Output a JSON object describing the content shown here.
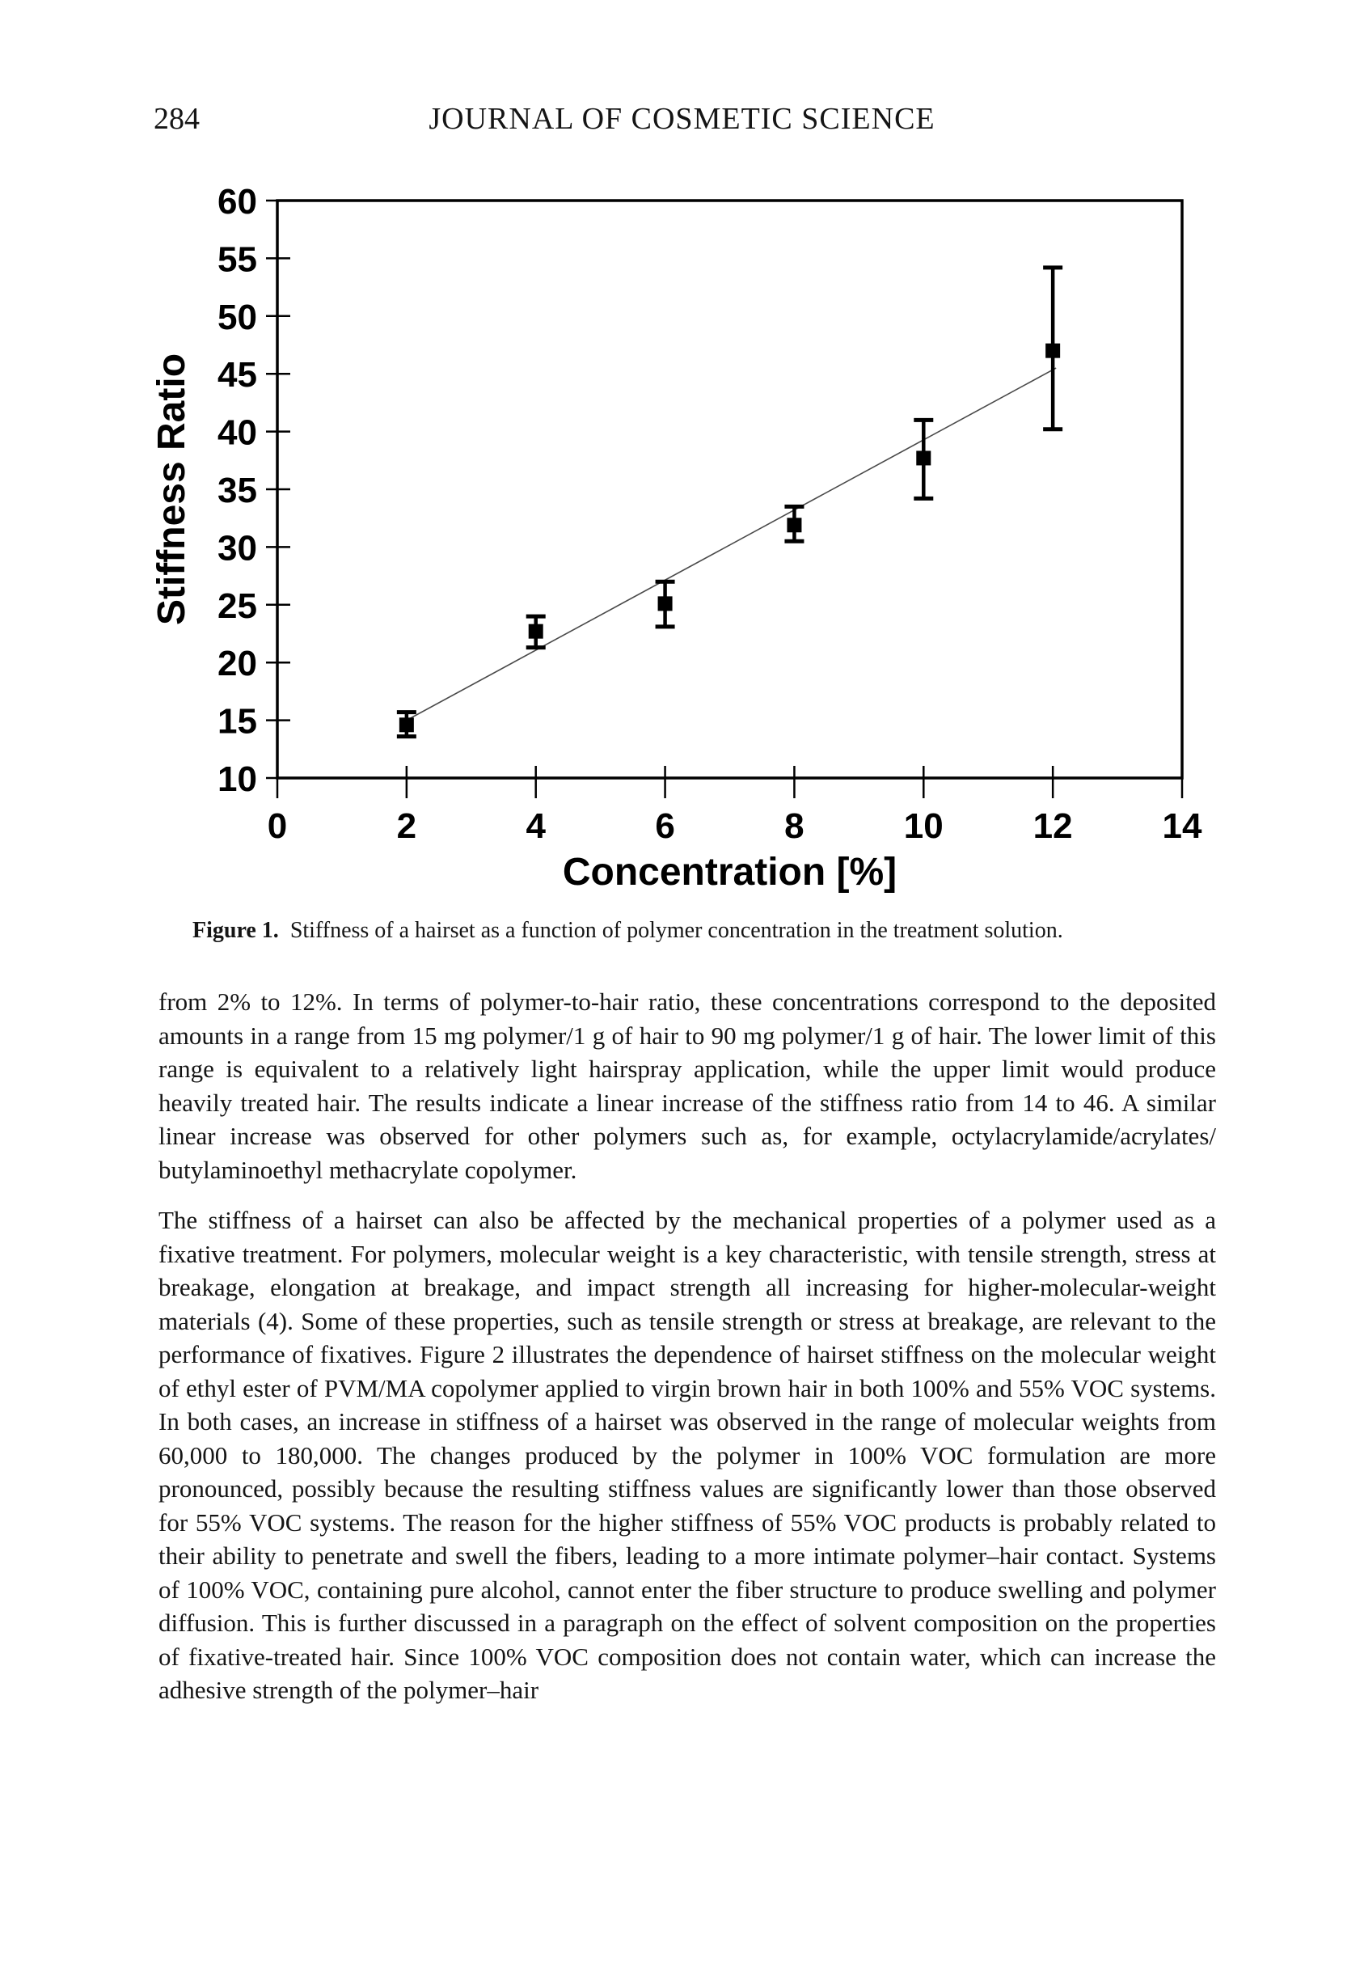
{
  "page": {
    "page_number": "284",
    "journal_title": "JOURNAL OF COSMETIC SCIENCE"
  },
  "figure": {
    "caption_label": "Figure 1.",
    "caption_text": "Stiffness of a hairset as a function of polymer concentration in the treatment solution."
  },
  "chart_data": {
    "type": "scatter",
    "title": "",
    "xlabel": "Concentration [%]",
    "ylabel": "Stiffness Ratio",
    "xlim": [
      0,
      14
    ],
    "ylim": [
      10,
      60
    ],
    "x_ticks": [
      0,
      2,
      4,
      6,
      8,
      10,
      12,
      14
    ],
    "y_ticks": [
      10,
      15,
      20,
      25,
      30,
      35,
      40,
      45,
      50,
      55,
      60
    ],
    "grid": false,
    "legend": false,
    "marker": "filled-square",
    "x": [
      2,
      4,
      6,
      8,
      10,
      12
    ],
    "y": [
      14.6,
      22.7,
      25.1,
      31.9,
      37.7,
      47.0
    ],
    "y_err_plus": [
      1.1,
      1.3,
      1.9,
      1.6,
      3.3,
      7.2
    ],
    "y_err_minus": [
      1.0,
      1.4,
      2.0,
      1.4,
      3.5,
      6.8
    ],
    "trend_line": {
      "x1": 2.0,
      "y1": 15.0,
      "x2": 12.05,
      "y2": 45.5
    }
  },
  "body": {
    "paragraphs": [
      "from 2% to 12%. In terms of polymer-to-hair ratio, these concentrations correspond to the deposited amounts in a range from 15 mg polymer/1 g of hair to 90 mg polymer/1 g of hair. The lower limit of this range is equivalent to a relatively light hairspray application, while the upper limit would produce heavily treated hair. The results indicate a linear increase of the stiffness ratio from 14 to 46. A similar linear increase was observed for other polymers such as, for example, octylacrylamide/acrylates/ butylaminoethyl methacrylate copolymer.",
      "The stiffness of a hairset can also be affected by the mechanical properties of a polymer used as a fixative treatment. For polymers, molecular weight is a key characteristic, with tensile strength, stress at breakage, elongation at breakage, and impact strength all increasing for higher-molecular-weight materials (4). Some of these properties, such as tensile strength or stress at breakage, are relevant to the performance of fixatives. Figure 2 illustrates the dependence of hairset stiffness on the molecular weight of ethyl ester of PVM/MA copolymer applied to virgin brown hair in both 100% and 55% VOC systems. In both cases, an increase in stiffness of a hairset was observed in the range of molecular weights from 60,000 to 180,000. The changes produced by the polymer in 100% VOC formulation are more pronounced, possibly because the resulting stiffness values are significantly lower than those observed for 55% VOC systems. The reason for the higher stiffness of 55% VOC products is probably related to their ability to penetrate and swell the fibers, leading to a more intimate polymer–hair contact. Systems of 100% VOC, containing pure alcohol, cannot enter the fiber structure to produce swelling and polymer diffusion. This is further discussed in a paragraph on the effect of solvent composition on the properties of fixative-treated hair. Since 100% VOC composition does not contain water, which can increase the adhesive strength of the polymer–hair"
    ]
  }
}
